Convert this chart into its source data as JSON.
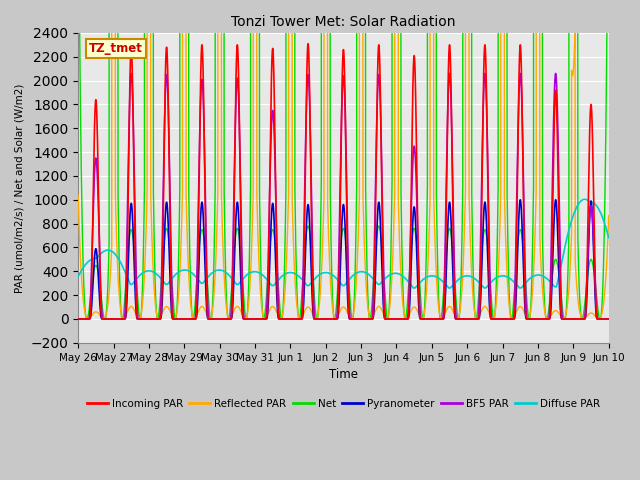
{
  "title": "Tonzi Tower Met: Solar Radiation",
  "ylabel": "PAR (umol/m2/s) / Net and Solar (W/m2)",
  "xlabel": "Time",
  "ylim": [
    -200,
    2400
  ],
  "plot_bg": "#e8e8e8",
  "fig_bg": "#c8c8c8",
  "annotation_text": "TZ_tmet",
  "annotation_bg": "#ffffcc",
  "annotation_border": "#cc8800",
  "xtick_labels": [
    "May 26",
    "May 27",
    "May 28",
    "May 29",
    "May 30",
    "May 31",
    "Jun 1",
    "Jun 2",
    "Jun 3",
    "Jun 4",
    "Jun 5",
    "Jun 6",
    "Jun 7",
    "Jun 8",
    "Jun 9",
    "Jun 10"
  ],
  "series": {
    "incoming_par": {
      "label": "Incoming PAR",
      "color": "#ff0000"
    },
    "reflected_par": {
      "label": "Reflected PAR",
      "color": "#ffaa00"
    },
    "net": {
      "label": "Net",
      "color": "#00dd00"
    },
    "pyranometer": {
      "label": "Pyranometer",
      "color": "#0000cc"
    },
    "bf5_par": {
      "label": "BF5 PAR",
      "color": "#aa00dd"
    },
    "diffuse_par": {
      "label": "Diffuse PAR",
      "color": "#00cccc"
    }
  },
  "n_days": 15,
  "pts_per_day": 1440
}
